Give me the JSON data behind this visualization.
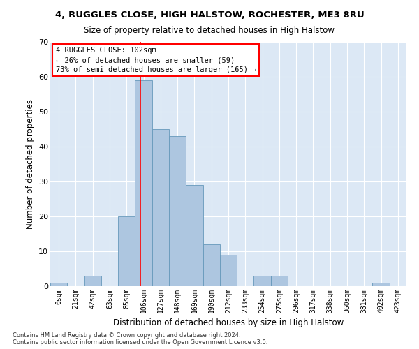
{
  "title": "4, RUGGLES CLOSE, HIGH HALSTOW, ROCHESTER, ME3 8RU",
  "subtitle": "Size of property relative to detached houses in High Halstow",
  "xlabel": "Distribution of detached houses by size in High Halstow",
  "ylabel": "Number of detached properties",
  "bar_values": [
    1,
    0,
    3,
    0,
    20,
    59,
    45,
    43,
    29,
    12,
    9,
    0,
    3,
    3,
    0,
    0,
    0,
    0,
    0,
    1,
    0
  ],
  "bar_color": "#adc6e0",
  "bar_edge_color": "#6699bb",
  "x_labels": [
    "0sqm",
    "21sqm",
    "42sqm",
    "63sqm",
    "85sqm",
    "106sqm",
    "127sqm",
    "148sqm",
    "169sqm",
    "190sqm",
    "212sqm",
    "233sqm",
    "254sqm",
    "275sqm",
    "296sqm",
    "317sqm",
    "338sqm",
    "360sqm",
    "381sqm",
    "402sqm",
    "423sqm"
  ],
  "annotation_text": "4 RUGGLES CLOSE: 102sqm\n← 26% of detached houses are smaller (59)\n73% of semi-detached houses are larger (165) →",
  "ylim": [
    0,
    70
  ],
  "yticks": [
    0,
    10,
    20,
    30,
    40,
    50,
    60,
    70
  ],
  "grid_color": "#ffffff",
  "bg_color": "#dce8f5",
  "footnote": "Contains HM Land Registry data © Crown copyright and database right 2024.\nContains public sector information licensed under the Open Government Licence v3.0.",
  "red_line_x": 4.81
}
